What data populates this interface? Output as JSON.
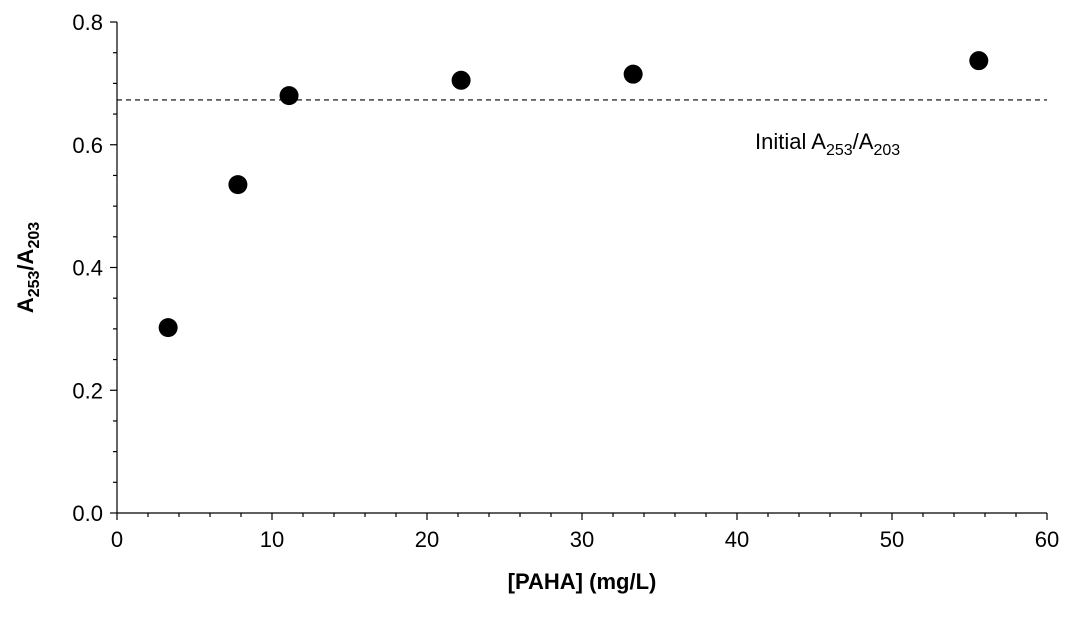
{
  "chart_data": {
    "type": "scatter",
    "xlabel": "[PAHA] (mg/L)",
    "ylabel": {
      "base": "A",
      "sub1": "253",
      "sep": "/",
      "base2": "A",
      "sub2": "203"
    },
    "xlim": [
      0,
      60
    ],
    "ylim": [
      0,
      0.8
    ],
    "x_ticks": [
      "0",
      "10",
      "20",
      "30",
      "40",
      "50",
      "60"
    ],
    "y_ticks": [
      "0.0",
      "0.2",
      "0.4",
      "0.6",
      "0.8"
    ],
    "x_minor_step": 2,
    "y_minor_step": 0.05,
    "grid": false,
    "series": [
      {
        "x": [
          3.3,
          7.8,
          11.1,
          22.2,
          33.3,
          55.6
        ],
        "y": [
          0.302,
          0.535,
          0.68,
          0.705,
          0.715,
          0.737
        ]
      }
    ],
    "reference_line": {
      "y": 0.673,
      "style": "dashed",
      "label": {
        "prefix": "Initial ",
        "base": "A",
        "sub1": "253",
        "sep": "/",
        "base2": "A",
        "sub2": "203"
      }
    }
  }
}
